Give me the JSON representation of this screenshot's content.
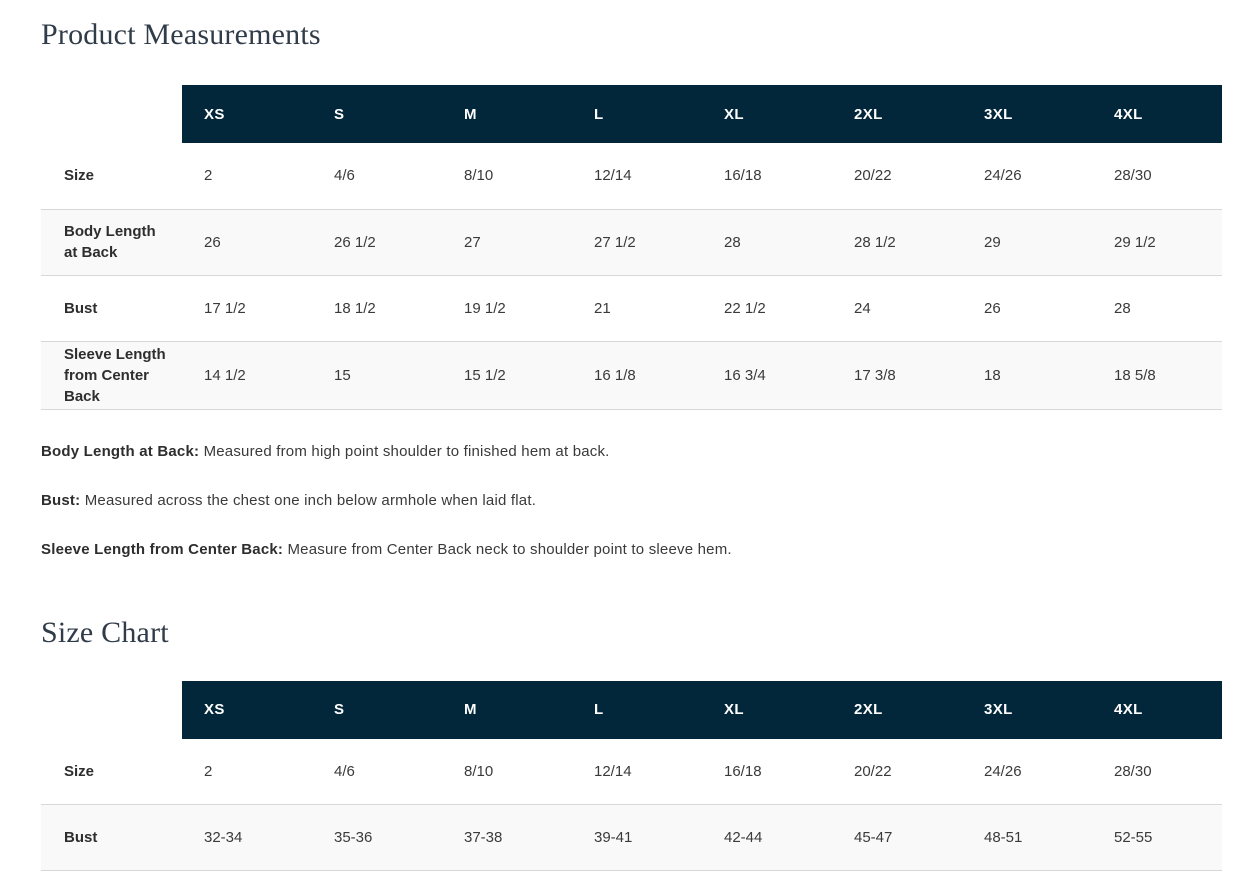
{
  "colors": {
    "header_bg": "#03273a",
    "header_text": "#ffffff",
    "row_alt_bg": "#f9f9f9",
    "border": "#d8d8d8",
    "heading_text": "#303c49",
    "body_text": "#3a3a3a",
    "label_text": "#2e2e2e"
  },
  "product_measurements": {
    "title": "Product Measurements",
    "table": {
      "columns": [
        "XS",
        "S",
        "M",
        "L",
        "XL",
        "2XL",
        "3XL",
        "4XL"
      ],
      "rows": [
        {
          "label": "Size",
          "values": [
            "2",
            "4/6",
            "8/10",
            "12/14",
            "16/18",
            "20/22",
            "24/26",
            "28/30"
          ]
        },
        {
          "label": "Body Length at Back",
          "values": [
            "26",
            "26 1/2",
            "27",
            "27 1/2",
            "28",
            "28 1/2",
            "29",
            "29 1/2"
          ]
        },
        {
          "label": "Bust",
          "values": [
            "17 1/2",
            "18 1/2",
            "19 1/2",
            "21",
            "22 1/2",
            "24",
            "26",
            "28"
          ]
        },
        {
          "label": "Sleeve Length from Center Back",
          "values": [
            "14 1/2",
            "15",
            "15 1/2",
            "16 1/8",
            "16 3/4",
            "17 3/8",
            "18",
            "18 5/8"
          ]
        }
      ]
    },
    "notes": [
      {
        "term": "Body Length at Back:",
        "definition": "Measured from high point shoulder to finished hem at back."
      },
      {
        "term": "Bust:",
        "definition": "Measured across the chest one inch below armhole when laid flat."
      },
      {
        "term": "Sleeve Length from Center Back:",
        "definition": "Measure from Center Back neck to shoulder point to sleeve hem."
      }
    ]
  },
  "size_chart": {
    "title": "Size Chart",
    "table": {
      "columns": [
        "XS",
        "S",
        "M",
        "L",
        "XL",
        "2XL",
        "3XL",
        "4XL"
      ],
      "rows": [
        {
          "label": "Size",
          "values": [
            "2",
            "4/6",
            "8/10",
            "12/14",
            "16/18",
            "20/22",
            "24/26",
            "28/30"
          ]
        },
        {
          "label": "Bust",
          "values": [
            "32-34",
            "35-36",
            "37-38",
            "39-41",
            "42-44",
            "45-47",
            "48-51",
            "52-55"
          ]
        }
      ]
    }
  }
}
